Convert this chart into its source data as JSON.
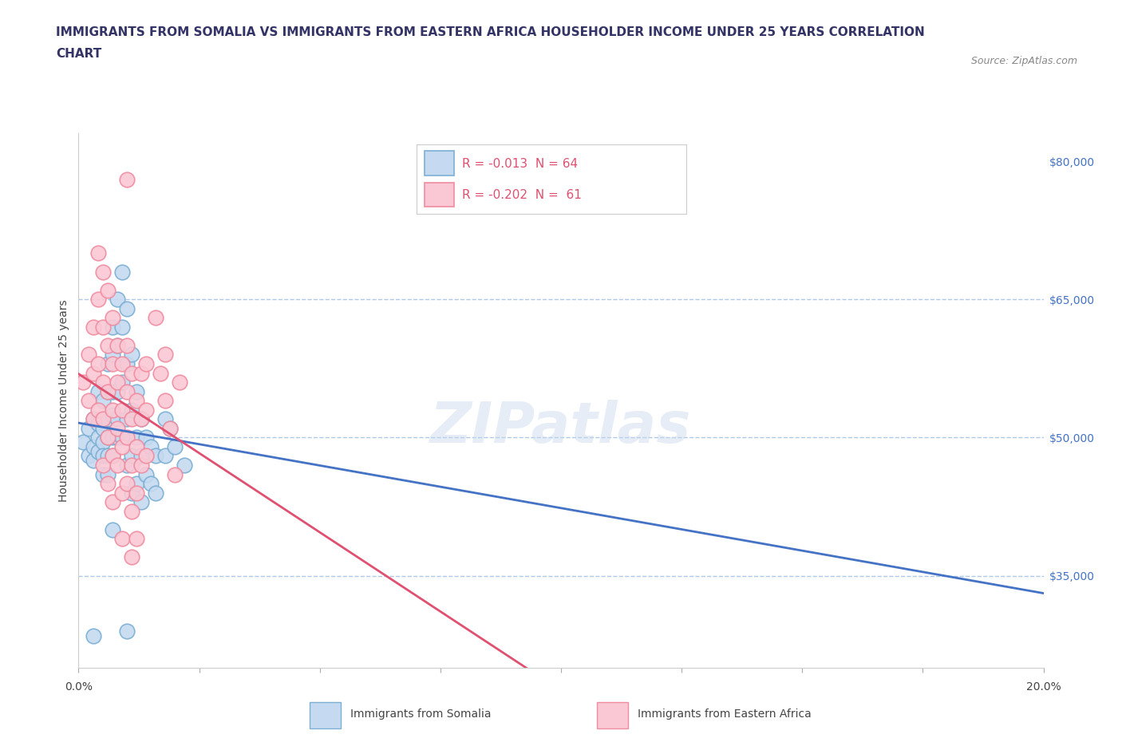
{
  "title_line1": "IMMIGRANTS FROM SOMALIA VS IMMIGRANTS FROM EASTERN AFRICA HOUSEHOLDER INCOME UNDER 25 YEARS CORRELATION",
  "title_line2": "CHART",
  "source_text": "Source: ZipAtlas.com",
  "ylabel": "Householder Income Under 25 years",
  "xlim": [
    0.0,
    0.2
  ],
  "ylim": [
    25000,
    83000
  ],
  "yticks": [
    35000,
    50000,
    65000,
    80000
  ],
  "ytick_labels": [
    "$35,000",
    "$50,000",
    "$65,000",
    "$80,000"
  ],
  "hlines": [
    65000,
    50000,
    35000
  ],
  "legend_r1": "R = -0.013  N = 64",
  "legend_r2": "R = -0.202  N =  61",
  "somalia_color_edge": "#7bafd4",
  "eastern_africa_color_edge": "#f08ca0",
  "somalia_color_fill": "#c5daf0",
  "eastern_africa_color_fill": "#fac8d4",
  "trendline_somalia_color": "#4472c4",
  "trendline_eastern_africa_color": "#e05070",
  "background_color": "#ffffff",
  "watermark": "ZIPatlas",
  "somalia_points": [
    [
      0.001,
      49500
    ],
    [
      0.002,
      51000
    ],
    [
      0.002,
      48000
    ],
    [
      0.003,
      52000
    ],
    [
      0.003,
      49000
    ],
    [
      0.003,
      47500
    ],
    [
      0.004,
      55000
    ],
    [
      0.004,
      51500
    ],
    [
      0.004,
      50000
    ],
    [
      0.004,
      48500
    ],
    [
      0.005,
      54000
    ],
    [
      0.005,
      51000
    ],
    [
      0.005,
      49500
    ],
    [
      0.005,
      48000
    ],
    [
      0.005,
      46000
    ],
    [
      0.006,
      58000
    ],
    [
      0.006,
      55000
    ],
    [
      0.006,
      52000
    ],
    [
      0.006,
      50000
    ],
    [
      0.006,
      48000
    ],
    [
      0.006,
      46000
    ],
    [
      0.007,
      62000
    ],
    [
      0.007,
      59000
    ],
    [
      0.007,
      55000
    ],
    [
      0.007,
      52500
    ],
    [
      0.007,
      50000
    ],
    [
      0.007,
      48000
    ],
    [
      0.008,
      65000
    ],
    [
      0.008,
      60000
    ],
    [
      0.008,
      55000
    ],
    [
      0.008,
      52000
    ],
    [
      0.008,
      50000
    ],
    [
      0.009,
      68000
    ],
    [
      0.009,
      62000
    ],
    [
      0.009,
      56000
    ],
    [
      0.009,
      50000
    ],
    [
      0.01,
      64000
    ],
    [
      0.01,
      58000
    ],
    [
      0.01,
      52000
    ],
    [
      0.01,
      47000
    ],
    [
      0.011,
      59000
    ],
    [
      0.011,
      53000
    ],
    [
      0.011,
      48000
    ],
    [
      0.011,
      44000
    ],
    [
      0.012,
      55000
    ],
    [
      0.012,
      50000
    ],
    [
      0.012,
      45000
    ],
    [
      0.013,
      52000
    ],
    [
      0.013,
      48000
    ],
    [
      0.013,
      43000
    ],
    [
      0.014,
      50000
    ],
    [
      0.014,
      46000
    ],
    [
      0.015,
      49000
    ],
    [
      0.015,
      45000
    ],
    [
      0.016,
      48000
    ],
    [
      0.016,
      44000
    ],
    [
      0.018,
      52000
    ],
    [
      0.018,
      48000
    ],
    [
      0.019,
      51000
    ],
    [
      0.02,
      49000
    ],
    [
      0.022,
      47000
    ],
    [
      0.01,
      29000
    ],
    [
      0.003,
      28500
    ],
    [
      0.007,
      40000
    ]
  ],
  "eastern_africa_points": [
    [
      0.001,
      56000
    ],
    [
      0.002,
      59000
    ],
    [
      0.002,
      54000
    ],
    [
      0.003,
      62000
    ],
    [
      0.003,
      57000
    ],
    [
      0.003,
      52000
    ],
    [
      0.004,
      70000
    ],
    [
      0.004,
      65000
    ],
    [
      0.004,
      58000
    ],
    [
      0.004,
      53000
    ],
    [
      0.005,
      68000
    ],
    [
      0.005,
      62000
    ],
    [
      0.005,
      56000
    ],
    [
      0.005,
      52000
    ],
    [
      0.005,
      47000
    ],
    [
      0.006,
      66000
    ],
    [
      0.006,
      60000
    ],
    [
      0.006,
      55000
    ],
    [
      0.006,
      50000
    ],
    [
      0.006,
      45000
    ],
    [
      0.007,
      63000
    ],
    [
      0.007,
      58000
    ],
    [
      0.007,
      53000
    ],
    [
      0.007,
      48000
    ],
    [
      0.007,
      43000
    ],
    [
      0.008,
      60000
    ],
    [
      0.008,
      56000
    ],
    [
      0.008,
      51000
    ],
    [
      0.008,
      47000
    ],
    [
      0.009,
      58000
    ],
    [
      0.009,
      53000
    ],
    [
      0.009,
      49000
    ],
    [
      0.009,
      44000
    ],
    [
      0.009,
      39000
    ],
    [
      0.01,
      60000
    ],
    [
      0.01,
      55000
    ],
    [
      0.01,
      50000
    ],
    [
      0.01,
      45000
    ],
    [
      0.011,
      57000
    ],
    [
      0.011,
      52000
    ],
    [
      0.011,
      47000
    ],
    [
      0.011,
      42000
    ],
    [
      0.011,
      37000
    ],
    [
      0.012,
      54000
    ],
    [
      0.012,
      49000
    ],
    [
      0.012,
      44000
    ],
    [
      0.012,
      39000
    ],
    [
      0.013,
      57000
    ],
    [
      0.013,
      52000
    ],
    [
      0.013,
      47000
    ],
    [
      0.014,
      58000
    ],
    [
      0.014,
      53000
    ],
    [
      0.014,
      48000
    ],
    [
      0.016,
      63000
    ],
    [
      0.017,
      57000
    ],
    [
      0.018,
      59000
    ],
    [
      0.018,
      54000
    ],
    [
      0.019,
      51000
    ],
    [
      0.02,
      46000
    ],
    [
      0.021,
      56000
    ],
    [
      0.01,
      78000
    ]
  ],
  "title_fontsize": 11,
  "axis_label_fontsize": 10,
  "tick_fontsize": 10,
  "legend_fontsize": 11
}
